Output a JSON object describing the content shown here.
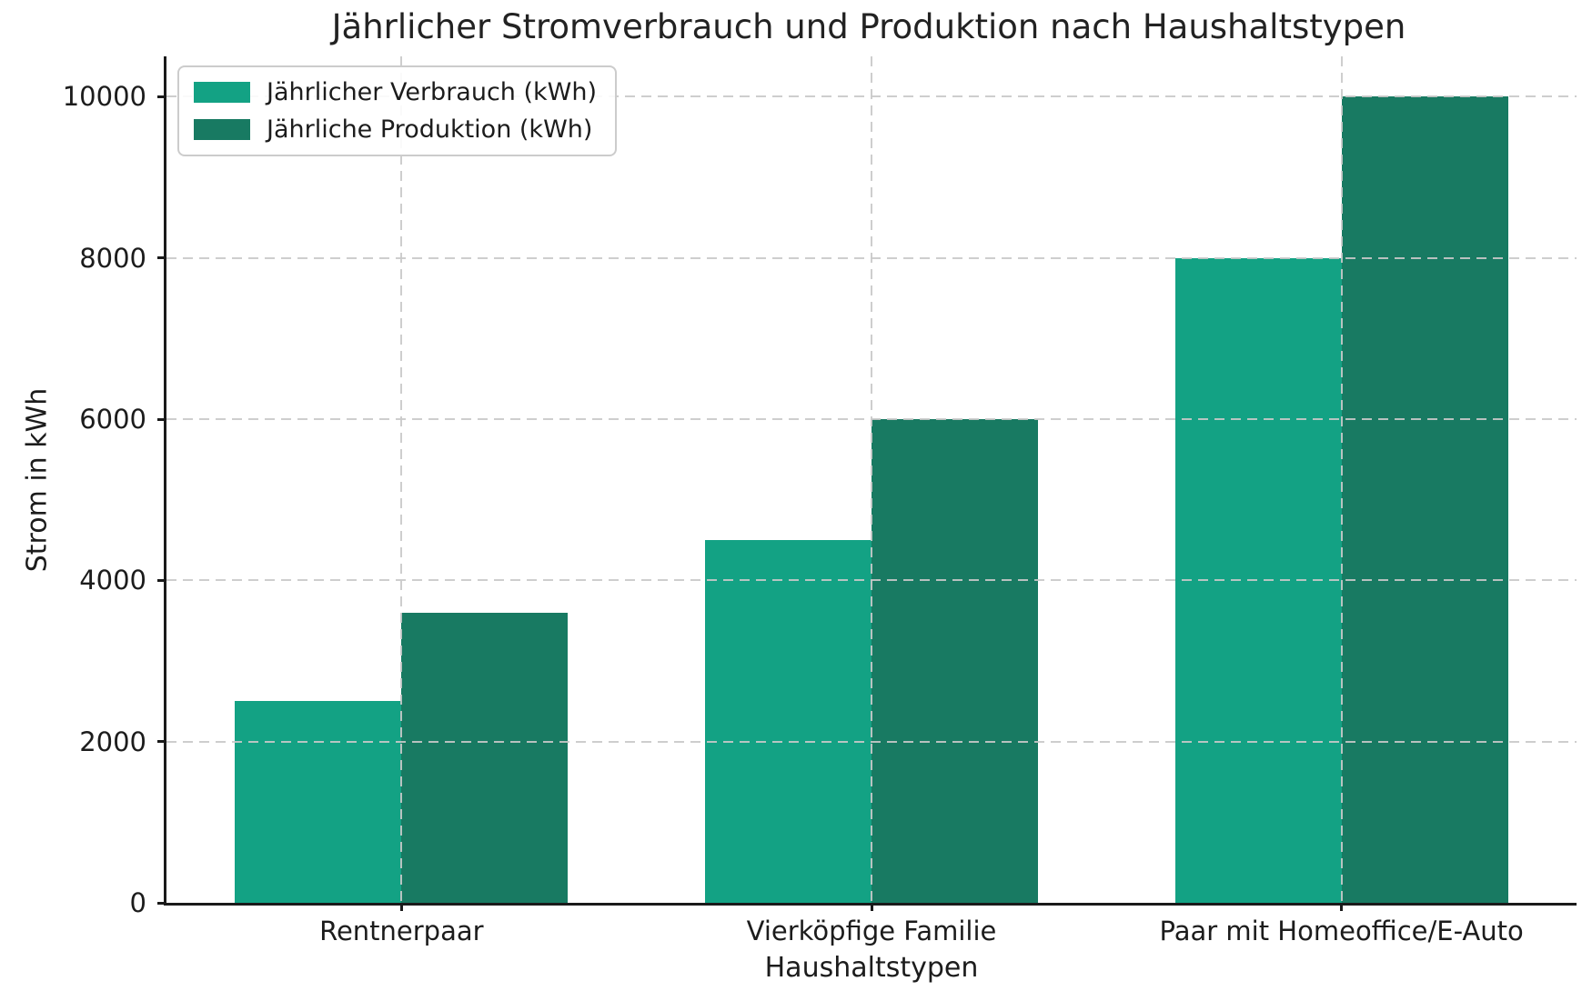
{
  "chart_data": {
    "type": "bar",
    "title": "Jährlicher Stromverbrauch und Produktion nach Haushaltstypen",
    "categories": [
      "Rentnerpaar",
      "Vierköpfige Familie",
      "Paar mit Homeoffice/E-Auto"
    ],
    "series": [
      {
        "name": "Jährlicher Verbrauch (kWh)",
        "color": "#13A284",
        "values": [
          2500,
          4500,
          8000
        ]
      },
      {
        "name": "Jährliche Produktion (kWh)",
        "color": "#187A62",
        "values": [
          3600,
          6000,
          10000
        ]
      }
    ],
    "xlabel": "Haushaltstypen",
    "ylabel": "Strom in kWh",
    "ylim": [
      0,
      10500
    ],
    "yticks": [
      0,
      2000,
      4000,
      6000,
      8000,
      10000
    ],
    "grid": {
      "style": "dashed",
      "color": "#cccccc",
      "on_top": true
    },
    "legend_position": "upper-left"
  },
  "colors": {
    "verbrauch": "#13A284",
    "produktion": "#187A62",
    "text": "#1c1c1c",
    "spine": "#1a1a1a",
    "grid": "#cccccc",
    "background": "#ffffff"
  }
}
